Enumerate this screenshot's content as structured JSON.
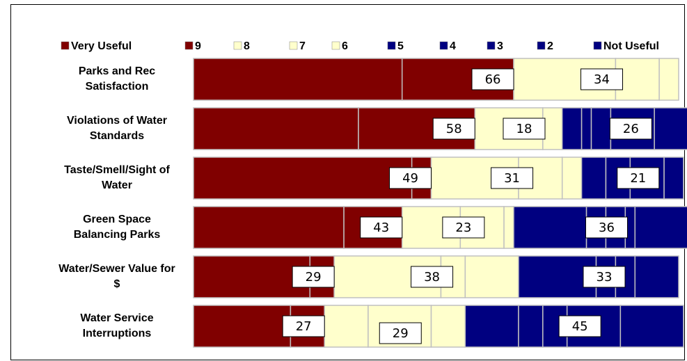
{
  "chart_data": {
    "type": "stacked-bar-horizontal",
    "categories": [
      "Parks and Rec\nSatisfaction",
      "Violations of Water\nStandards",
      "Taste/Smell/Sight of\nWater",
      "Green Space\nBalancing Parks",
      "Water/Sewer Value for\n$",
      "Water Service\nInterruptions"
    ],
    "series": [
      {
        "name": "Very Useful",
        "color": "#800000",
        "values": [
          43,
          34,
          45,
          31,
          24,
          20
        ]
      },
      {
        "name": "9",
        "color": "#800000",
        "values": [
          23,
          24,
          4,
          12,
          5,
          7
        ]
      },
      {
        "name": "8",
        "color": "#ffffcc",
        "values": [
          21,
          14,
          18,
          12,
          22,
          9
        ]
      },
      {
        "name": "7",
        "color": "#ffffcc",
        "values": [
          9,
          4,
          9,
          9,
          5,
          13
        ]
      },
      {
        "name": "6",
        "color": "#ffffcc",
        "values": [
          4,
          0,
          4,
          2,
          11,
          7
        ]
      },
      {
        "name": "5",
        "color": "#000080",
        "values": [
          0,
          4,
          5,
          15,
          16,
          11
        ]
      },
      {
        "name": "4",
        "color": "#000080",
        "values": [
          0,
          2,
          5,
          4,
          4,
          5
        ]
      },
      {
        "name": "3",
        "color": "#000080",
        "values": [
          0,
          4,
          7,
          4,
          4,
          5
        ]
      },
      {
        "name": "2",
        "color": "#000080",
        "values": [
          0,
          9,
          4,
          2,
          9,
          11
        ]
      },
      {
        "name": "Not Useful",
        "color": "#000080",
        "values": [
          0,
          7,
          0,
          11,
          0,
          13
        ]
      }
    ],
    "group_labels": [
      [
        66,
        34,
        null
      ],
      [
        58,
        18,
        26
      ],
      [
        49,
        31,
        21
      ],
      [
        43,
        23,
        36
      ],
      [
        29,
        38,
        33
      ],
      [
        27,
        29,
        45
      ]
    ],
    "xlim": [
      0,
      100
    ]
  }
}
